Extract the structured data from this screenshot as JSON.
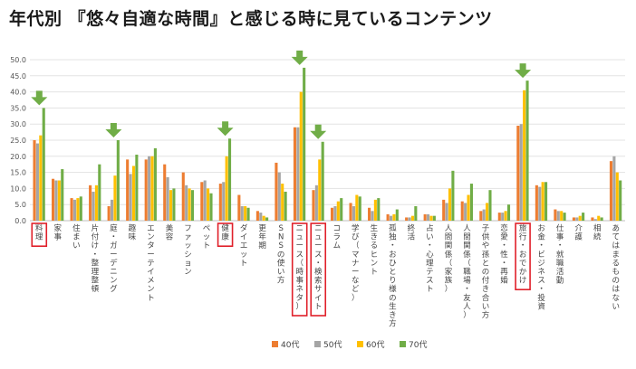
{
  "chart_data": {
    "type": "bar",
    "title": "年代別 『悠々自適な時間』と感じる時に見ているコンテンツ",
    "xlabel": "",
    "ylabel": "",
    "ylim": [
      0,
      50
    ],
    "yticks": [
      "0.0",
      "5.0",
      "10.0",
      "15.0",
      "20.0",
      "25.0",
      "30.0",
      "35.0",
      "40.0",
      "45.0",
      "50.0"
    ],
    "grid": true,
    "legend_position": "bottom",
    "categories": [
      "料理",
      "家事",
      "住まい",
      "片付け・整理整頓",
      "庭・ガーデニング",
      "趣味",
      "エンターテイメント",
      "美容",
      "ファッション",
      "ペット",
      "健康",
      "ダイエット",
      "更年期",
      "SNSの使い方",
      "ニュース（時事ネタ）",
      "ニュース・検索サイト",
      "コラム",
      "学び（マナーなど）",
      "生きるヒント",
      "孤独・おひとり様の生き方",
      "終活",
      "占い・心理テスト",
      "人間関係（家族）",
      "人間関係（職場・友人）",
      "子供や孫との付き合い方",
      "恋愛・性・再婚",
      "旅行・おでかけ",
      "お金・ビジネス・投資",
      "仕事・就職活動",
      "介護",
      "相続",
      "あてはまるものはない"
    ],
    "highlighted": [
      "料理",
      "健康",
      "ニュース（時事ネタ）",
      "ニュース・検索サイト",
      "旅行・おでかけ"
    ],
    "arrows": [
      "料理",
      "庭・ガーデニング",
      "健康",
      "ニュース（時事ネタ）",
      "ニュース・検索サイト",
      "旅行・おでかけ"
    ],
    "series": [
      {
        "name": "40代",
        "color": "#ED7D31",
        "values": [
          25.0,
          13.0,
          7.0,
          11.0,
          4.5,
          19.0,
          19.0,
          17.5,
          15.0,
          12.0,
          11.5,
          8.0,
          3.0,
          18.0,
          29.0,
          9.5,
          4.0,
          5.5,
          4.0,
          2.0,
          1.0,
          2.0,
          6.5,
          6.0,
          3.0,
          2.5,
          29.5,
          11.0,
          3.5,
          1.0,
          1.0,
          18.5
        ]
      },
      {
        "name": "50代",
        "color": "#A5A5A5",
        "values": [
          24.0,
          12.5,
          6.5,
          9.0,
          6.5,
          14.5,
          20.0,
          13.5,
          11.0,
          12.5,
          12.0,
          4.5,
          2.5,
          15.0,
          29.0,
          11.0,
          4.5,
          4.5,
          3.0,
          1.5,
          1.0,
          2.0,
          5.5,
          5.5,
          3.5,
          2.5,
          30.0,
          10.5,
          3.0,
          1.0,
          0.5,
          20.0
        ]
      },
      {
        "name": "60代",
        "color": "#FFC000",
        "values": [
          26.5,
          12.5,
          7.0,
          11.0,
          14.0,
          17.0,
          20.0,
          9.5,
          10.0,
          10.0,
          20.0,
          4.5,
          1.5,
          11.5,
          40.0,
          19.0,
          6.0,
          8.0,
          6.5,
          2.0,
          1.5,
          1.5,
          10.0,
          8.0,
          5.5,
          3.0,
          40.5,
          12.0,
          3.0,
          1.5,
          1.5,
          15.0
        ]
      },
      {
        "name": "70代",
        "color": "#70AD47",
        "values": [
          35.0,
          16.0,
          7.5,
          17.5,
          25.0,
          20.5,
          22.5,
          10.0,
          9.5,
          8.5,
          25.5,
          4.0,
          1.0,
          9.0,
          47.5,
          24.5,
          7.0,
          7.5,
          7.0,
          3.5,
          4.5,
          1.5,
          15.5,
          11.5,
          9.5,
          5.0,
          43.5,
          12.0,
          2.5,
          2.5,
          1.0,
          12.5
        ]
      }
    ]
  }
}
